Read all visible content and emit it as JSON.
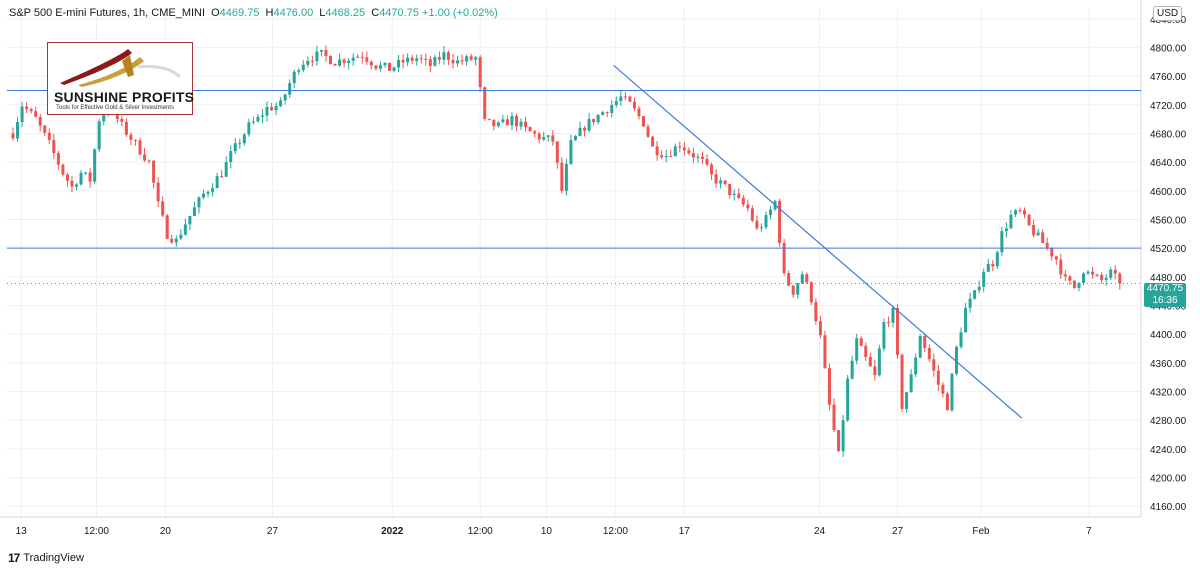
{
  "header": {
    "symbol": "S&P 500 E-mini Futures, 1h, CME_MINI",
    "o_label": "O",
    "o_value": "4469.75",
    "h_label": "H",
    "h_value": "4476.00",
    "l_label": "L",
    "l_value": "4468.25",
    "c_label": "C",
    "c_value": "4470.75",
    "change": "+1.00 (+0.02%)"
  },
  "currency": "USD",
  "logo": {
    "brand": "SUNSHINE PROFITS",
    "tagline": "Tools for Effective Gold & Silver Investments"
  },
  "last_price": {
    "value": "4470.75",
    "countdown": "16:36"
  },
  "footer": {
    "brand": "TradingView"
  },
  "colors": {
    "up": "#26a69a",
    "down": "#ef5350",
    "line": "#3d7bd9",
    "grid": "#eef0f3"
  },
  "chart_data": {
    "type": "candlestick",
    "y_ticks": [
      4160,
      4200,
      4240,
      4280,
      4320,
      4360,
      4400,
      4440,
      4480,
      4520,
      4560,
      4600,
      4640,
      4680,
      4720,
      4760,
      4800,
      4840
    ],
    "ylim": [
      4145,
      4855
    ],
    "x_ticks": [
      {
        "label": "13",
        "x": 0.9
      },
      {
        "label": "12:00",
        "x": 9.2
      },
      {
        "label": "20",
        "x": 16.8
      },
      {
        "label": "27",
        "x": 28.6
      },
      {
        "label": "2022",
        "x": 41.8
      },
      {
        "label": "12:00",
        "x": 51.5
      },
      {
        "label": "10",
        "x": 58.8
      },
      {
        "label": "12:00",
        "x": 66.4
      },
      {
        "label": "17",
        "x": 74.0
      },
      {
        "label": "24",
        "x": 88.9
      },
      {
        "label": "27",
        "x": 97.5
      },
      {
        "label": "Feb",
        "x": 106.7
      },
      {
        "label": "7",
        "x": 118.6
      }
    ],
    "xlim": [
      0,
      125
    ],
    "horizontal_lines": [
      4740,
      4520
    ],
    "last_price_line": 4470.75,
    "trend_line": {
      "x1": 66.2,
      "y1": 4775,
      "x2": 111.2,
      "y2": 4283
    },
    "path": [
      [
        0,
        4680
      ],
      [
        1,
        4720
      ],
      [
        2.5,
        4700
      ],
      [
        4,
        4665
      ],
      [
        5.5,
        4625
      ],
      [
        6.5,
        4605
      ],
      [
        7.5,
        4625
      ],
      [
        8.5,
        4615
      ],
      [
        9.5,
        4700
      ],
      [
        10.5,
        4720
      ],
      [
        12,
        4690
      ],
      [
        13.5,
        4665
      ],
      [
        15,
        4640
      ],
      [
        16,
        4580
      ],
      [
        17,
        4540
      ],
      [
        18,
        4530
      ],
      [
        19,
        4555
      ],
      [
        20,
        4575
      ],
      [
        21,
        4595
      ],
      [
        22,
        4610
      ],
      [
        23,
        4625
      ],
      [
        24,
        4650
      ],
      [
        25,
        4670
      ],
      [
        26,
        4690
      ],
      [
        27,
        4700
      ],
      [
        28,
        4715
      ],
      [
        29.5,
        4720
      ],
      [
        30.5,
        4750
      ],
      [
        31.5,
        4775
      ],
      [
        32.5,
        4785
      ],
      [
        34,
        4790
      ],
      [
        35.5,
        4780
      ],
      [
        37,
        4785
      ],
      [
        38.5,
        4790
      ],
      [
        40,
        4775
      ],
      [
        41.5,
        4770
      ],
      [
        43,
        4780
      ],
      [
        44.5,
        4785
      ],
      [
        46,
        4775
      ],
      [
        47.5,
        4790
      ],
      [
        49,
        4780
      ],
      [
        51,
        4785
      ],
      [
        52,
        4695
      ],
      [
        53.5,
        4690
      ],
      [
        55,
        4700
      ],
      [
        56.5,
        4685
      ],
      [
        58,
        4675
      ],
      [
        59.5,
        4670
      ],
      [
        60.5,
        4600
      ],
      [
        61.5,
        4665
      ],
      [
        63,
        4690
      ],
      [
        64.5,
        4705
      ],
      [
        66,
        4720
      ],
      [
        67,
        4730
      ],
      [
        68,
        4720
      ],
      [
        69.5,
        4695
      ],
      [
        70.5,
        4660
      ],
      [
        72,
        4650
      ],
      [
        73.5,
        4665
      ],
      [
        75,
        4650
      ],
      [
        76,
        4640
      ],
      [
        77,
        4620
      ],
      [
        78.5,
        4605
      ],
      [
        80,
        4585
      ],
      [
        81,
        4575
      ],
      [
        82,
        4545
      ],
      [
        83,
        4560
      ],
      [
        84,
        4585
      ],
      [
        85,
        4480
      ],
      [
        86,
        4460
      ],
      [
        87,
        4485
      ],
      [
        88,
        4450
      ],
      [
        89,
        4395
      ],
      [
        90,
        4300
      ],
      [
        91,
        4230
      ],
      [
        92,
        4335
      ],
      [
        93,
        4390
      ],
      [
        94,
        4365
      ],
      [
        95,
        4340
      ],
      [
        96,
        4415
      ],
      [
        97,
        4430
      ],
      [
        98,
        4300
      ],
      [
        99,
        4340
      ],
      [
        100,
        4400
      ],
      [
        101,
        4365
      ],
      [
        102,
        4330
      ],
      [
        103,
        4300
      ],
      [
        104,
        4380
      ],
      [
        105,
        4435
      ],
      [
        106,
        4455
      ],
      [
        107,
        4490
      ],
      [
        108,
        4500
      ],
      [
        109,
        4540
      ],
      [
        110,
        4565
      ],
      [
        111,
        4570
      ],
      [
        112,
        4550
      ],
      [
        113,
        4535
      ],
      [
        114,
        4520
      ],
      [
        115,
        4505
      ],
      [
        116,
        4475
      ],
      [
        117,
        4465
      ],
      [
        118,
        4490
      ],
      [
        119,
        4480
      ],
      [
        120,
        4475
      ],
      [
        121,
        4485
      ],
      [
        122,
        4470.75
      ]
    ]
  }
}
